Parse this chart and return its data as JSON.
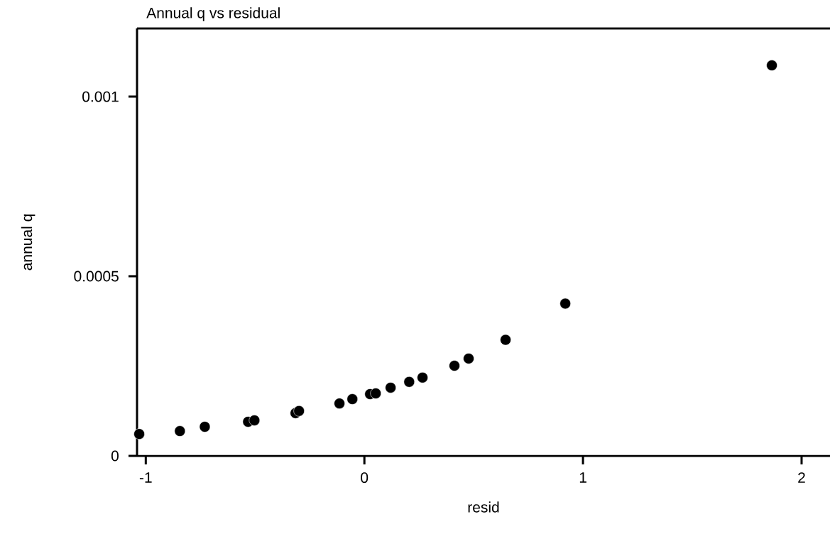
{
  "chart_data": {
    "type": "scatter",
    "title": "Annual q vs residual",
    "xlabel": "resid",
    "ylabel": "annual q",
    "x": [
      -1.03,
      -0.844,
      -0.73,
      -0.532,
      -0.503,
      -0.315,
      -0.299,
      -0.114,
      -0.055,
      0.026,
      0.052,
      0.12,
      0.205,
      0.266,
      0.412,
      0.477,
      0.646,
      0.919,
      1.864
    ],
    "values": [
      6.1e-05,
      6.9e-05,
      8.1e-05,
      9.5e-05,
      9.9e-05,
      0.000119,
      0.000125,
      0.000146,
      0.000158,
      0.000172,
      0.000174,
      0.00019,
      0.000206,
      0.000218,
      0.000251,
      0.000271,
      0.000323,
      0.000424,
      0.001087
    ],
    "color": "#000000",
    "xlim": [
      -1.04,
      2.13
    ],
    "ylim": [
      0,
      0.00119
    ],
    "xticks": [
      -1,
      0,
      1,
      2
    ],
    "yticks": [
      0,
      0.0005,
      0.001
    ],
    "grid": false
  }
}
